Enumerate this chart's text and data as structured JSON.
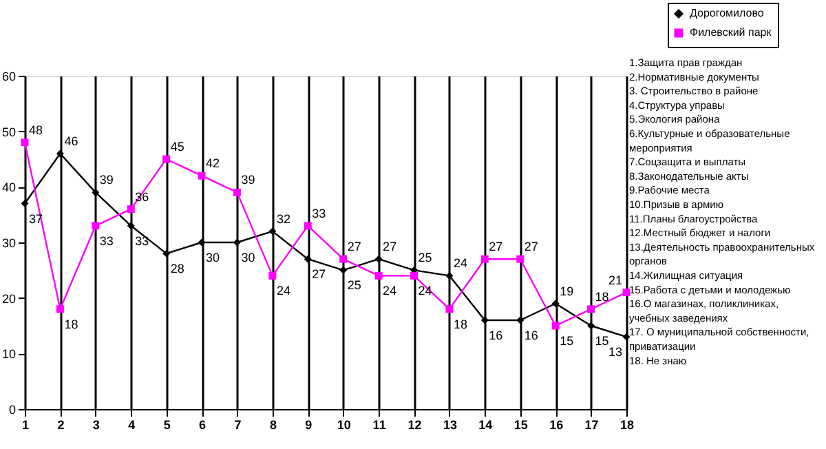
{
  "chart_data": {
    "type": "line",
    "x": [
      1,
      2,
      3,
      4,
      5,
      6,
      7,
      8,
      9,
      10,
      11,
      12,
      13,
      14,
      15,
      16,
      17,
      18
    ],
    "series": [
      {
        "name": "Дорогомилово",
        "color": "#000000",
        "marker": "diamond",
        "values": [
          37,
          46,
          39,
          33,
          28,
          30,
          30,
          32,
          27,
          25,
          27,
          25,
          24,
          16,
          16,
          19,
          15,
          13
        ]
      },
      {
        "name": "Филевский парк",
        "color": "#ff00ff",
        "marker": "square",
        "values": [
          48,
          18,
          33,
          36,
          45,
          42,
          39,
          24,
          33,
          27,
          24,
          24,
          18,
          27,
          27,
          15,
          18,
          21
        ]
      }
    ],
    "xlim": [
      1,
      18
    ],
    "xticks": [
      1,
      2,
      3,
      4,
      5,
      6,
      7,
      8,
      9,
      10,
      11,
      12,
      13,
      14,
      15,
      16,
      17,
      18
    ],
    "ylim": [
      0,
      60
    ],
    "yticks": [
      0,
      10,
      20,
      30,
      40,
      50,
      60
    ],
    "grid": "x",
    "legend": "top right",
    "data_labels": true,
    "line_style": "solid",
    "annotations": [
      "1.Защита прав граждан",
      "2.Нормативные документы",
      "3. Строительство в районе",
      "4.Структура управы",
      "5.Экология района",
      "6.Культурные и образовательные мероприятия",
      "7.Соцзащита и выплаты",
      "8.Законодательные акты",
      "9.Рабочие места",
      "10.Призыв в армию",
      "11.Планы благоустройства",
      "12.Местный бюджет и налоги",
      "13.Деятельность правоохранительных органов",
      "14.Жилищная ситуация",
      "15.Работа с детьми и молодежью",
      "16.О  магазинах, поликлиниках, учебных заведениях",
      "17. О муниципальной собственности, приватизации",
      "18. Не знаю"
    ]
  }
}
